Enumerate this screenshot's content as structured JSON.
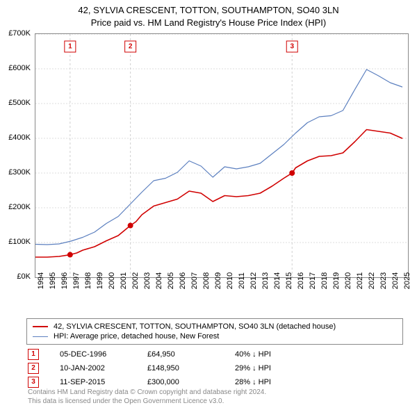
{
  "title_line1": "42, SYLVIA CRESCENT, TOTTON, SOUTHAMPTON, SO40 3LN",
  "title_line2": "Price paid vs. HM Land Registry's House Price Index (HPI)",
  "chart": {
    "type": "line",
    "background_color": "#ffffff",
    "grid_color": "#dcdcdc",
    "ylim": [
      0,
      700000
    ],
    "ytick_step": 100000,
    "ytick_labels": [
      "£0K",
      "£100K",
      "£200K",
      "£300K",
      "£400K",
      "£500K",
      "£600K",
      "£700K"
    ],
    "x_years": [
      1994,
      1995,
      1996,
      1997,
      1998,
      1999,
      2000,
      2001,
      2002,
      2003,
      2004,
      2005,
      2006,
      2007,
      2008,
      2009,
      2010,
      2011,
      2012,
      2013,
      2014,
      2015,
      2016,
      2017,
      2018,
      2019,
      2020,
      2021,
      2022,
      2023,
      2024,
      2025
    ],
    "x_min": 1994,
    "x_max": 2025.5,
    "series": [
      {
        "name": "property",
        "label": "42, SYLVIA CRESCENT, TOTTON, SOUTHAMPTON, SO40 3LN (detached house)",
        "color": "#d00000",
        "line_width": 1.6,
        "points": [
          [
            1994,
            58000
          ],
          [
            1995,
            58000
          ],
          [
            1996,
            60000
          ],
          [
            1996.93,
            64950
          ],
          [
            1997.5,
            70000
          ],
          [
            1998,
            78000
          ],
          [
            1999,
            88000
          ],
          [
            2000,
            105000
          ],
          [
            2001,
            120000
          ],
          [
            2002.03,
            148950
          ],
          [
            2002.5,
            160000
          ],
          [
            2003,
            180000
          ],
          [
            2004,
            205000
          ],
          [
            2005,
            215000
          ],
          [
            2006,
            225000
          ],
          [
            2007,
            248000
          ],
          [
            2008,
            242000
          ],
          [
            2009,
            218000
          ],
          [
            2010,
            235000
          ],
          [
            2011,
            232000
          ],
          [
            2012,
            235000
          ],
          [
            2013,
            242000
          ],
          [
            2014,
            262000
          ],
          [
            2015,
            285000
          ],
          [
            2015.7,
            300000
          ],
          [
            2016,
            315000
          ],
          [
            2017,
            335000
          ],
          [
            2018,
            348000
          ],
          [
            2019,
            350000
          ],
          [
            2020,
            358000
          ],
          [
            2021,
            390000
          ],
          [
            2022,
            425000
          ],
          [
            2023,
            420000
          ],
          [
            2024,
            415000
          ],
          [
            2025,
            400000
          ]
        ]
      },
      {
        "name": "hpi",
        "label": "HPI: Average price, detached house, New Forest",
        "color": "#5b7fbf",
        "line_width": 1.2,
        "points": [
          [
            1994,
            95000
          ],
          [
            1995,
            94000
          ],
          [
            1996,
            96000
          ],
          [
            1997,
            104000
          ],
          [
            1998,
            115000
          ],
          [
            1999,
            130000
          ],
          [
            2000,
            155000
          ],
          [
            2001,
            175000
          ],
          [
            2002,
            210000
          ],
          [
            2003,
            245000
          ],
          [
            2004,
            278000
          ],
          [
            2005,
            285000
          ],
          [
            2006,
            302000
          ],
          [
            2007,
            335000
          ],
          [
            2008,
            320000
          ],
          [
            2009,
            288000
          ],
          [
            2010,
            318000
          ],
          [
            2011,
            312000
          ],
          [
            2012,
            318000
          ],
          [
            2013,
            328000
          ],
          [
            2014,
            355000
          ],
          [
            2015,
            382000
          ],
          [
            2016,
            415000
          ],
          [
            2017,
            445000
          ],
          [
            2018,
            462000
          ],
          [
            2019,
            465000
          ],
          [
            2020,
            480000
          ],
          [
            2021,
            540000
          ],
          [
            2022,
            598000
          ],
          [
            2023,
            580000
          ],
          [
            2024,
            560000
          ],
          [
            2025,
            548000
          ]
        ]
      }
    ],
    "markers": [
      {
        "num": "1",
        "x": 1996.93,
        "y": 64950
      },
      {
        "num": "2",
        "x": 2002.03,
        "y": 148950
      },
      {
        "num": "3",
        "x": 2015.7,
        "y": 300000
      }
    ]
  },
  "legend": {
    "items": [
      {
        "color": "#d00000",
        "width": 2,
        "label_key": "chart.series.0.label"
      },
      {
        "color": "#5b7fbf",
        "width": 1,
        "label_key": "chart.series.1.label"
      }
    ]
  },
  "annotations": [
    {
      "num": "1",
      "date": "05-DEC-1996",
      "price": "£64,950",
      "hpi": "40% ↓ HPI"
    },
    {
      "num": "2",
      "date": "10-JAN-2002",
      "price": "£148,950",
      "hpi": "29% ↓ HPI"
    },
    {
      "num": "3",
      "date": "11-SEP-2015",
      "price": "£300,000",
      "hpi": "28% ↓ HPI"
    }
  ],
  "footer": {
    "line1": "Contains HM Land Registry data © Crown copyright and database right 2024.",
    "line2": "This data is licensed under the Open Government Licence v3.0."
  }
}
